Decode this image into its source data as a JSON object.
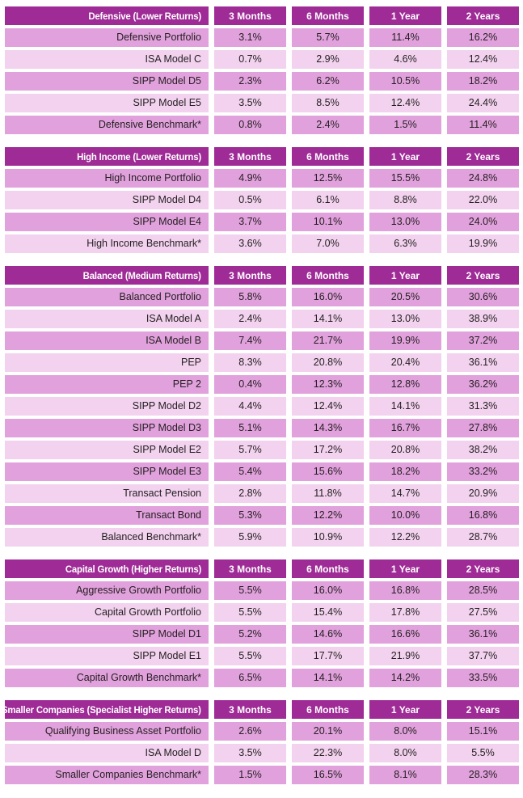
{
  "columns": [
    "3 Months",
    "6 Months",
    "1 Year",
    "2 Years"
  ],
  "tables": [
    {
      "title": "Defensive (Lower Returns)",
      "rows": [
        {
          "label": "Defensive Portfolio",
          "values": [
            "3.1%",
            "5.7%",
            "11.4%",
            "16.2%"
          ]
        },
        {
          "label": "ISA Model C",
          "values": [
            "0.7%",
            "2.9%",
            "4.6%",
            "12.4%"
          ]
        },
        {
          "label": "SIPP Model D5",
          "values": [
            "2.3%",
            "6.2%",
            "10.5%",
            "18.2%"
          ]
        },
        {
          "label": "SIPP Model E5",
          "values": [
            "3.5%",
            "8.5%",
            "12.4%",
            "24.4%"
          ]
        },
        {
          "label": "Defensive Benchmark*",
          "values": [
            "0.8%",
            "2.4%",
            "1.5%",
            "11.4%"
          ]
        }
      ]
    },
    {
      "title": "High Income (Lower Returns)",
      "rows": [
        {
          "label": "High Income Portfolio",
          "values": [
            "4.9%",
            "12.5%",
            "15.5%",
            "24.8%"
          ]
        },
        {
          "label": "SIPP Model D4",
          "values": [
            "0.5%",
            "6.1%",
            "8.8%",
            "22.0%"
          ]
        },
        {
          "label": "SIPP Model E4",
          "values": [
            "3.7%",
            "10.1%",
            "13.0%",
            "24.0%"
          ]
        },
        {
          "label": "High Income Benchmark*",
          "values": [
            "3.6%",
            "7.0%",
            "6.3%",
            "19.9%"
          ]
        }
      ]
    },
    {
      "title": "Balanced (Medium Returns)",
      "rows": [
        {
          "label": "Balanced Portfolio",
          "values": [
            "5.8%",
            "16.0%",
            "20.5%",
            "30.6%"
          ]
        },
        {
          "label": "ISA Model A",
          "values": [
            "2.4%",
            "14.1%",
            "13.0%",
            "38.9%"
          ]
        },
        {
          "label": "ISA Model B",
          "values": [
            "7.4%",
            "21.7%",
            "19.9%",
            "37.2%"
          ]
        },
        {
          "label": "PEP",
          "values": [
            "8.3%",
            "20.8%",
            "20.4%",
            "36.1%"
          ]
        },
        {
          "label": "PEP 2",
          "values": [
            "0.4%",
            "12.3%",
            "12.8%",
            "36.2%"
          ]
        },
        {
          "label": "SIPP Model D2",
          "values": [
            "4.4%",
            "12.4%",
            "14.1%",
            "31.3%"
          ]
        },
        {
          "label": "SIPP Model D3",
          "values": [
            "5.1%",
            "14.3%",
            "16.7%",
            "27.8%"
          ]
        },
        {
          "label": "SIPP Model E2",
          "values": [
            "5.7%",
            "17.2%",
            "20.8%",
            "38.2%"
          ]
        },
        {
          "label": "SIPP Model E3",
          "values": [
            "5.4%",
            "15.6%",
            "18.2%",
            "33.2%"
          ]
        },
        {
          "label": "Transact Pension",
          "values": [
            "2.8%",
            "11.8%",
            "14.7%",
            "20.9%"
          ]
        },
        {
          "label": "Transact Bond",
          "values": [
            "5.3%",
            "12.2%",
            "10.0%",
            "16.8%"
          ]
        },
        {
          "label": "Balanced Benchmark*",
          "values": [
            "5.9%",
            "10.9%",
            "12.2%",
            "28.7%"
          ]
        }
      ]
    },
    {
      "title": "Capital Growth (Higher Returns)",
      "rows": [
        {
          "label": "Aggressive Growth Portfolio",
          "values": [
            "5.5%",
            "16.0%",
            "16.8%",
            "28.5%"
          ]
        },
        {
          "label": "Capital Growth Portfolio",
          "values": [
            "5.5%",
            "15.4%",
            "17.8%",
            "27.5%"
          ]
        },
        {
          "label": "SIPP Model D1",
          "values": [
            "5.2%",
            "14.6%",
            "16.6%",
            "36.1%"
          ]
        },
        {
          "label": "SIPP Model E1",
          "values": [
            "5.5%",
            "17.7%",
            "21.9%",
            "37.7%"
          ]
        },
        {
          "label": "Capital Growth Benchmark*",
          "values": [
            "6.5%",
            "14.1%",
            "14.2%",
            "33.5%"
          ]
        }
      ]
    },
    {
      "title": "Smaller Companies (Specialist Higher Returns)",
      "rows": [
        {
          "label": "Qualifying Business Asset Portfolio",
          "values": [
            "2.6%",
            "20.1%",
            "8.0%",
            "15.1%"
          ]
        },
        {
          "label": "ISA Model D",
          "values": [
            "3.5%",
            "22.3%",
            "8.0%",
            "5.5%"
          ]
        },
        {
          "label": "Smaller Companies Benchmark*",
          "values": [
            "1.5%",
            "16.5%",
            "8.1%",
            "28.3%"
          ]
        }
      ]
    }
  ],
  "colors": {
    "header_bg": "#9E2B96",
    "header_text": "#FFFFFF",
    "row_dark_bg": "#E1A1DC",
    "row_light_bg": "#F2D2EE",
    "cell_text": "#231F20",
    "page_bg": "#FFFFFF"
  }
}
